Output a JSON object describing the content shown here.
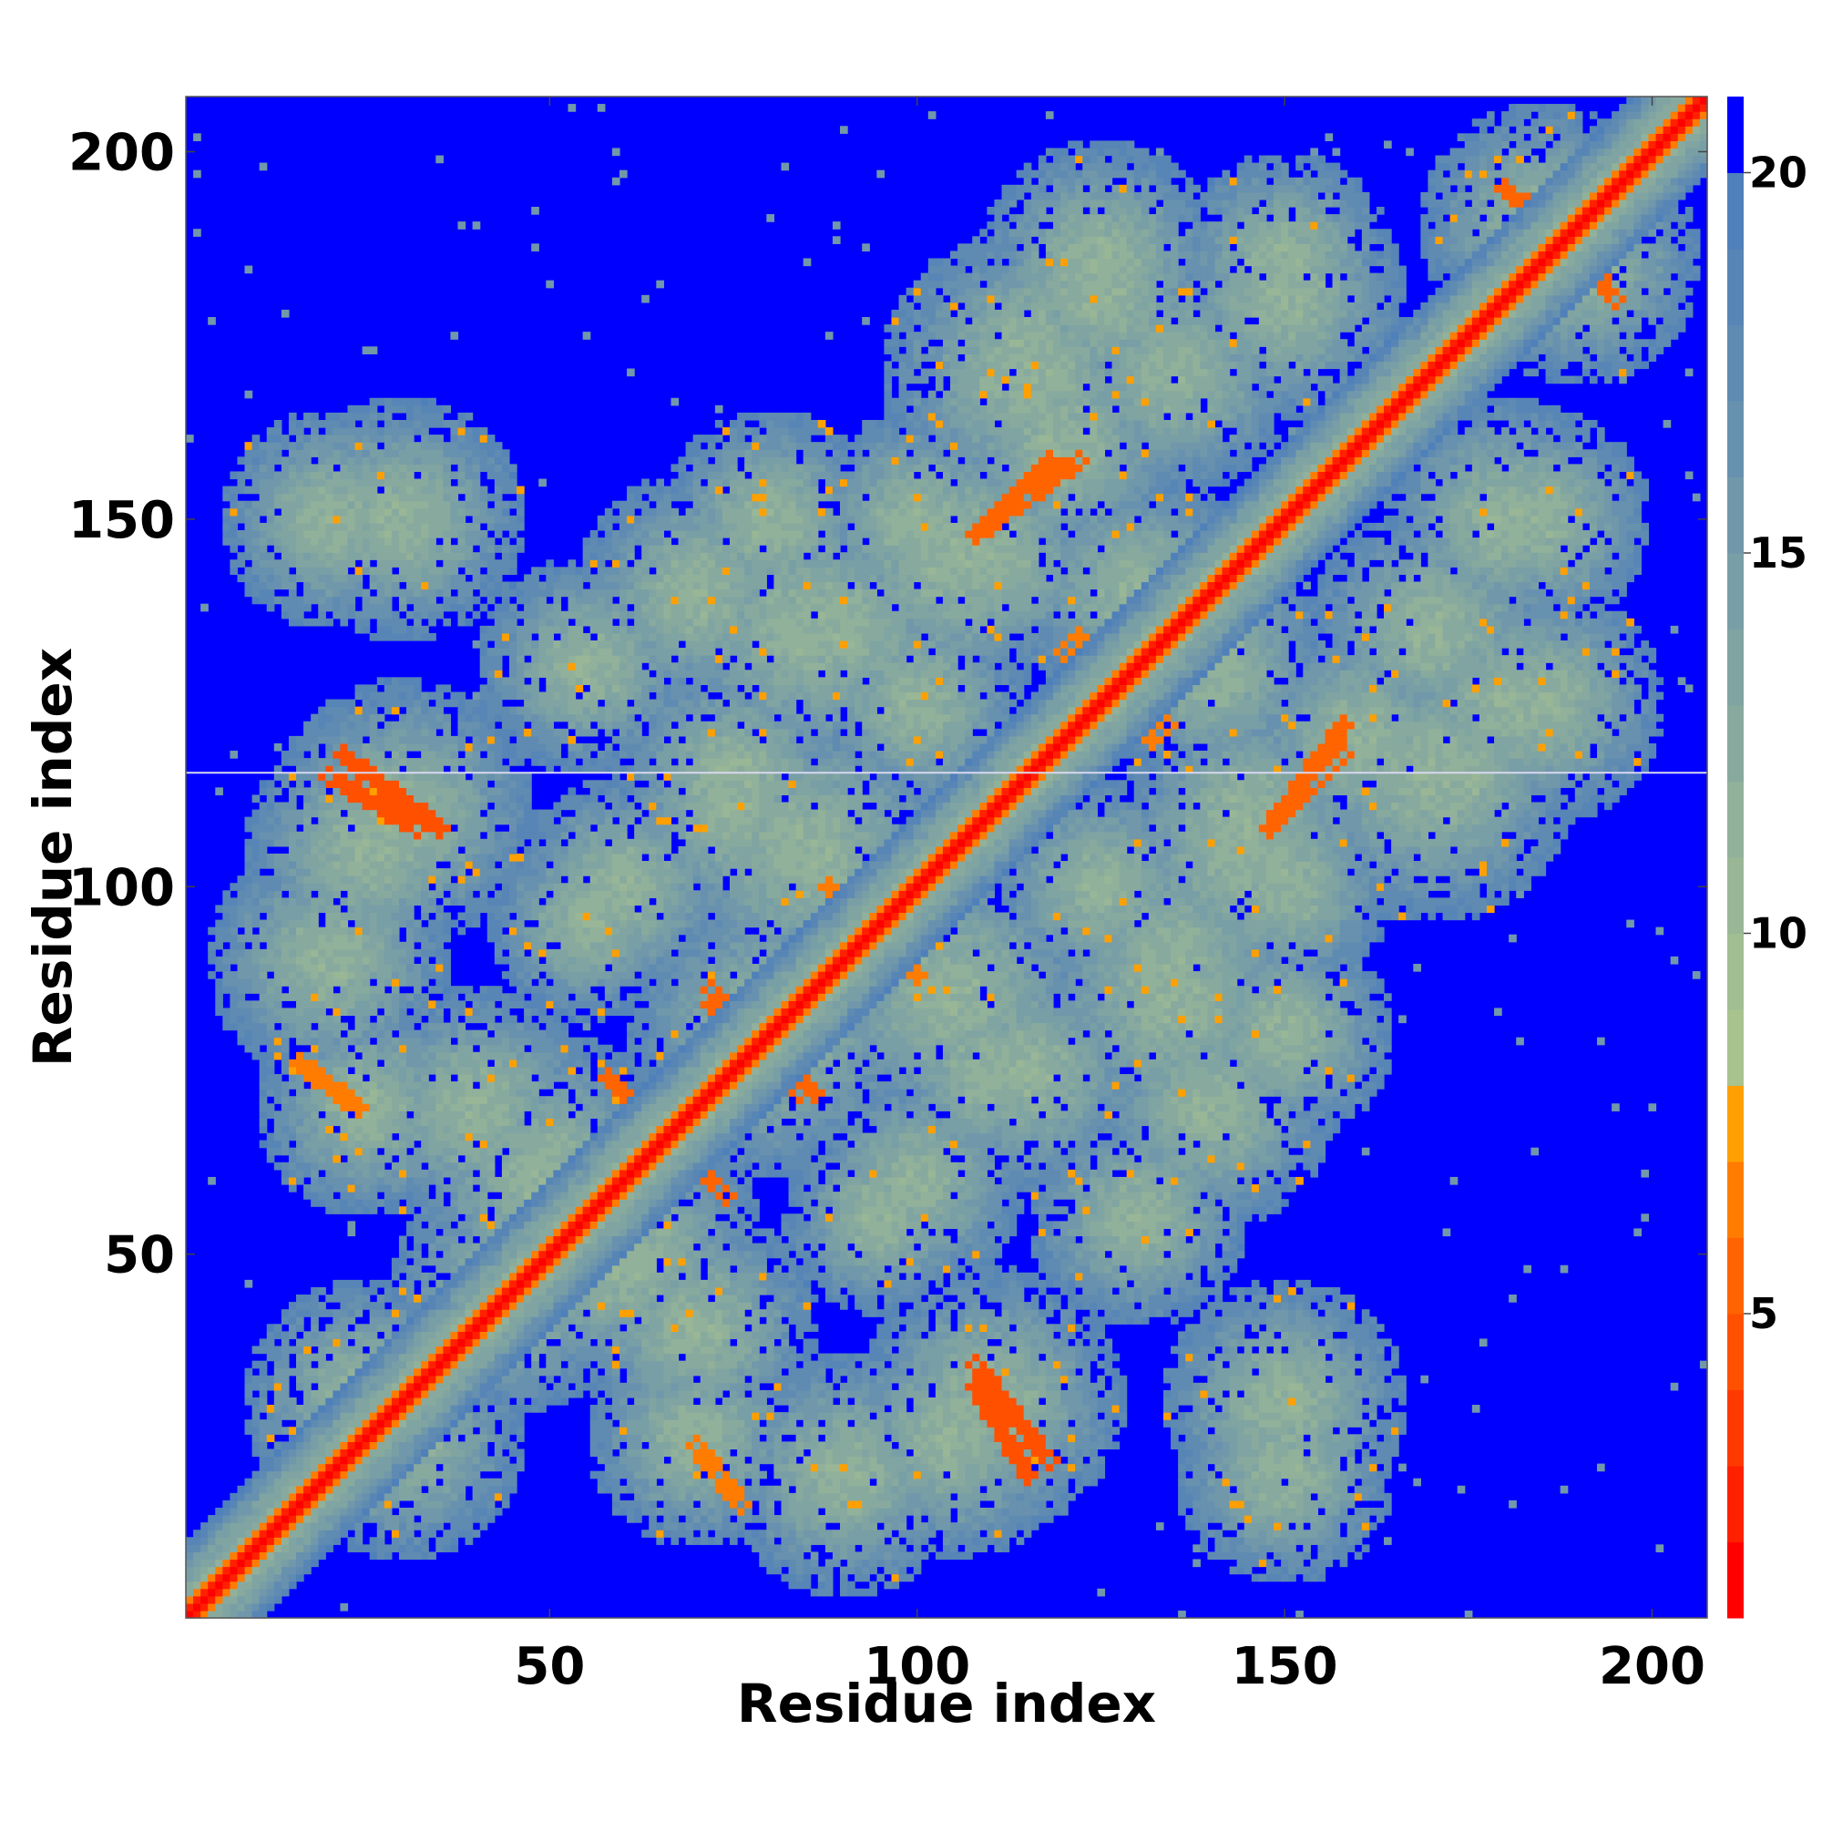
{
  "chart_data": {
    "type": "heatmap",
    "title": "",
    "xlabel": "Residue index",
    "ylabel": "Residue index",
    "n_residues": 207,
    "xlim": [
      1,
      207
    ],
    "ylim": [
      1,
      207
    ],
    "x_ticks": [
      50,
      100,
      150,
      200
    ],
    "y_ticks": [
      50,
      100,
      150,
      200
    ],
    "colorbar": {
      "range": [
        1,
        21
      ],
      "ticks": [
        5,
        10,
        15,
        20
      ],
      "levels": [
        {
          "max": 2,
          "color": "#ff0000"
        },
        {
          "max": 3,
          "color": "#ff2000"
        },
        {
          "max": 4,
          "color": "#ff3a00"
        },
        {
          "max": 5,
          "color": "#ff5000"
        },
        {
          "max": 6,
          "color": "#ff6400"
        },
        {
          "max": 7,
          "color": "#ff7c00"
        },
        {
          "max": 8,
          "color": "#ffa000"
        },
        {
          "max": 9,
          "color": "#a9c38e"
        },
        {
          "max": 10,
          "color": "#a1bd92"
        },
        {
          "max": 11,
          "color": "#99b796"
        },
        {
          "max": 12,
          "color": "#91b19a"
        },
        {
          "max": 13,
          "color": "#88aa9e"
        },
        {
          "max": 14,
          "color": "#80a4a2"
        },
        {
          "max": 15,
          "color": "#789ea6"
        },
        {
          "max": 16,
          "color": "#7098aa"
        },
        {
          "max": 17,
          "color": "#6791ae"
        },
        {
          "max": 18,
          "color": "#5f8bb2"
        },
        {
          "max": 19,
          "color": "#5785b6"
        },
        {
          "max": 20,
          "color": "#4f80ba"
        },
        {
          "max": 21,
          "color": "#0000ff"
        }
      ]
    },
    "value_description": "distance between residue pairs; diagonal near 1-3, background saturated at >=20",
    "contact_features": [
      {
        "kind": "band",
        "x_range": [
          1,
          207
        ],
        "offset": 0,
        "value": 1.5
      },
      {
        "kind": "band",
        "x_range": [
          1,
          207
        ],
        "offset": 2,
        "value": 6.5
      },
      {
        "kind": "segment",
        "from": [
          20,
          115
        ],
        "to": [
          32,
          108
        ],
        "value": 5
      },
      {
        "kind": "segment",
        "from": [
          108,
          35
        ],
        "to": [
          118,
          22
        ],
        "value": 5
      },
      {
        "kind": "segment",
        "from": [
          60,
          72
        ],
        "to": [
          74,
          58
        ],
        "value": 6
      },
      {
        "kind": "segment",
        "from": [
          72,
          86
        ],
        "to": [
          84,
          72
        ],
        "value": 6
      },
      {
        "kind": "segment",
        "from": [
          108,
          148
        ],
        "to": [
          122,
          158
        ],
        "value": 6
      },
      {
        "kind": "segment",
        "from": [
          148,
          108
        ],
        "to": [
          158,
          118
        ],
        "value": 6
      },
      {
        "kind": "segment",
        "from": [
          183,
          193
        ],
        "to": [
          195,
          180
        ],
        "value": 6
      },
      {
        "kind": "segment",
        "from": [
          120,
          132
        ],
        "to": [
          134,
          122
        ],
        "value": 7
      },
      {
        "kind": "segment",
        "from": [
          70,
          24
        ],
        "to": [
          76,
          16
        ],
        "value": 7
      },
      {
        "kind": "segment",
        "from": [
          88,
          100
        ],
        "to": [
          100,
          88
        ],
        "value": 7
      }
    ]
  }
}
